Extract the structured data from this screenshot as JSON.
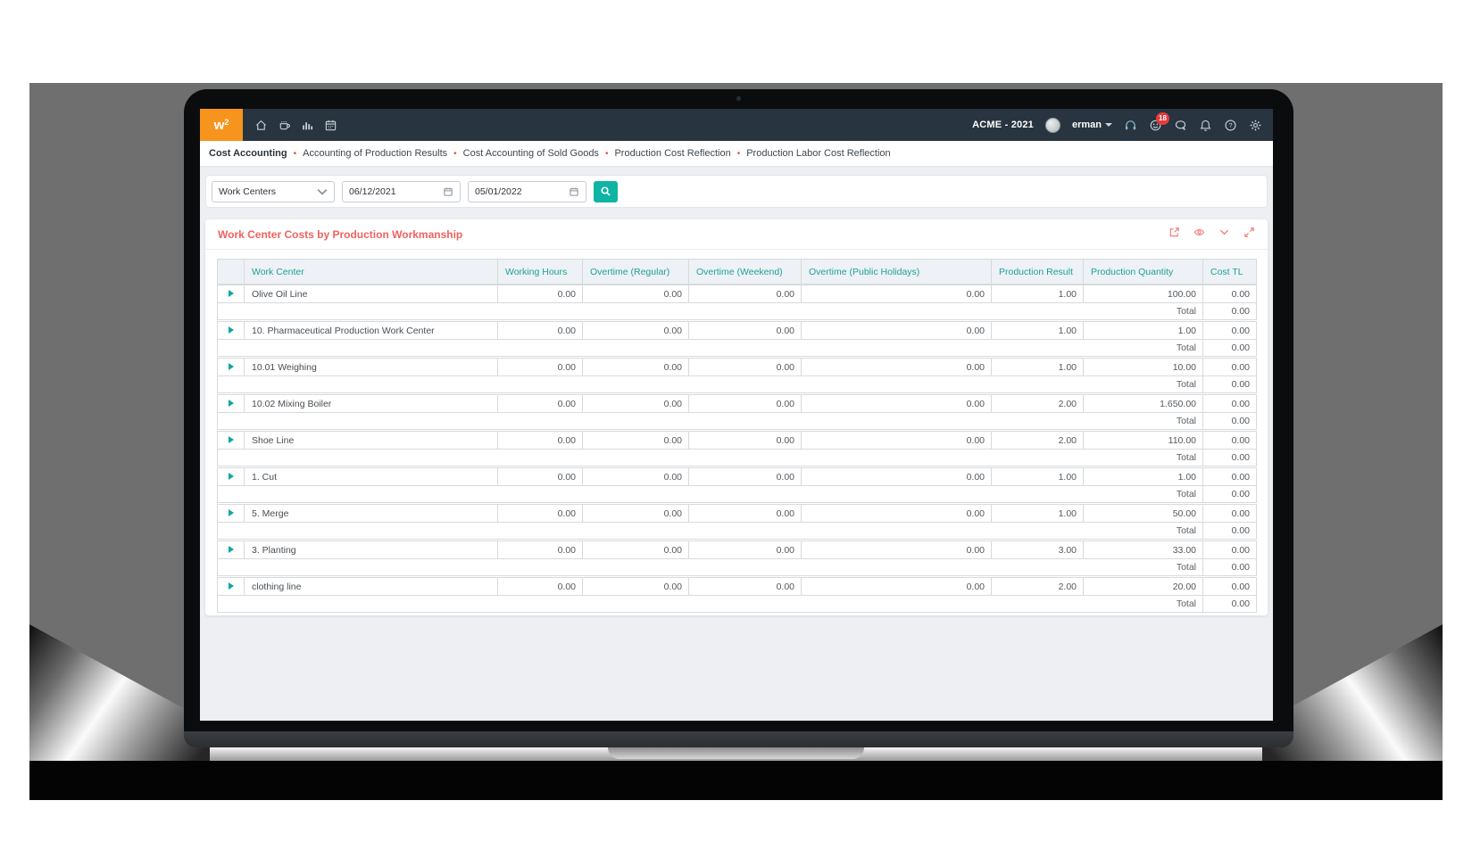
{
  "navbar": {
    "logo_text": "w",
    "logo_sup": "2",
    "nav_icon_names": [
      "home-icon",
      "coffee-icon",
      "bar-chart-icon",
      "calendar-icon"
    ],
    "company": "ACME - 2021",
    "user": "erman",
    "badge_count": "18",
    "right_icon_names": [
      "headset-icon",
      "smiley-icon",
      "chat-icon",
      "bell-icon",
      "help-icon",
      "gear-icon"
    ]
  },
  "breadcrumb": {
    "active": "Cost Accounting",
    "items": [
      "Accounting of Production Results",
      "Cost Accounting of Sold Goods",
      "Production Cost Reflection",
      "Production Labor Cost Reflection"
    ]
  },
  "filters": {
    "select_value": "Work Centers",
    "date_from": "06/12/2021",
    "date_to": "05/01/2022",
    "search_icon": "magnifier-icon"
  },
  "card": {
    "title": "Work Center Costs by Production Workmanship",
    "action_icon_names": [
      "export-icon",
      "eye-icon",
      "chevron-down-icon",
      "expand-icon"
    ]
  },
  "table": {
    "columns": [
      "Work Center",
      "Working Hours",
      "Overtime (Regular)",
      "Overtime (Weekend)",
      "Overtime (Public Holidays)",
      "Production Result",
      "Production Quantity",
      "Cost TL"
    ],
    "total_label": "Total",
    "rows": [
      {
        "name": "Olive Oil Line",
        "hours": "0.00",
        "ot_regular": "0.00",
        "ot_weekend": "0.00",
        "ot_public": "0.00",
        "result": "1.00",
        "quantity": "100.00",
        "cost": "0.00",
        "total": "0.00"
      },
      {
        "name": "10. Pharmaceutical Production Work Center",
        "hours": "0.00",
        "ot_regular": "0.00",
        "ot_weekend": "0.00",
        "ot_public": "0.00",
        "result": "1.00",
        "quantity": "1.00",
        "cost": "0.00",
        "total": "0.00"
      },
      {
        "name": "10.01 Weighing",
        "hours": "0.00",
        "ot_regular": "0.00",
        "ot_weekend": "0.00",
        "ot_public": "0.00",
        "result": "1.00",
        "quantity": "10.00",
        "cost": "0.00",
        "total": "0.00"
      },
      {
        "name": "10.02 Mixing Boiler",
        "hours": "0.00",
        "ot_regular": "0.00",
        "ot_weekend": "0.00",
        "ot_public": "0.00",
        "result": "2.00",
        "quantity": "1.650.00",
        "cost": "0.00",
        "total": "0.00"
      },
      {
        "name": "Shoe Line",
        "hours": "0.00",
        "ot_regular": "0.00",
        "ot_weekend": "0.00",
        "ot_public": "0.00",
        "result": "2.00",
        "quantity": "110.00",
        "cost": "0.00",
        "total": "0.00"
      },
      {
        "name": "1. Cut",
        "hours": "0.00",
        "ot_regular": "0.00",
        "ot_weekend": "0.00",
        "ot_public": "0.00",
        "result": "1.00",
        "quantity": "1.00",
        "cost": "0.00",
        "total": "0.00"
      },
      {
        "name": "5. Merge",
        "hours": "0.00",
        "ot_regular": "0.00",
        "ot_weekend": "0.00",
        "ot_public": "0.00",
        "result": "1.00",
        "quantity": "50.00",
        "cost": "0.00",
        "total": "0.00"
      },
      {
        "name": "3. Planting",
        "hours": "0.00",
        "ot_regular": "0.00",
        "ot_weekend": "0.00",
        "ot_public": "0.00",
        "result": "3.00",
        "quantity": "33.00",
        "cost": "0.00",
        "total": "0.00"
      },
      {
        "name": "clothing line",
        "hours": "0.00",
        "ot_regular": "0.00",
        "ot_weekend": "0.00",
        "ot_public": "0.00",
        "result": "2.00",
        "quantity": "20.00",
        "cost": "0.00",
        "total": "0.00"
      }
    ]
  },
  "colors": {
    "navbar_bg": "#28343f",
    "accent_orange": "#f7941d",
    "accent_teal": "#10a59f",
    "accent_red": "#f0625f",
    "badge_red": "#e23b3b",
    "page_bg": "#edeff3"
  }
}
